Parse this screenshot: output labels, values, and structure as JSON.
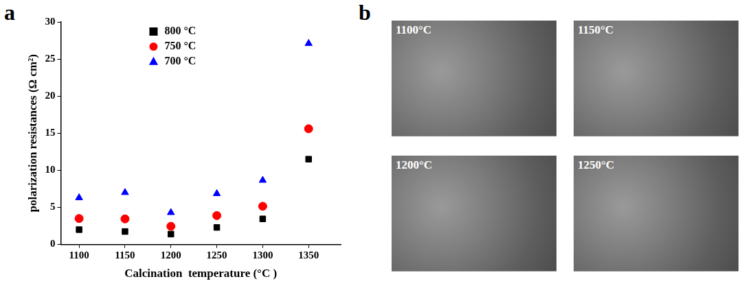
{
  "panel_letters": [
    "a",
    "b"
  ],
  "chart_data": {
    "type": "scatter",
    "x_label": "Calcination  temperature (°C )",
    "y_label": "polarization resistances (Ω cm²)",
    "x": [
      1100,
      1150,
      1200,
      1250,
      1300,
      1350
    ],
    "series": [
      {
        "name": "800 °C",
        "color": "#000000",
        "marker": "square",
        "values": [
          2.0,
          1.75,
          1.4,
          2.3,
          3.45,
          11.5
        ]
      },
      {
        "name": "750 °C",
        "color": "#ff0000",
        "marker": "circle",
        "values": [
          3.5,
          3.45,
          2.45,
          3.9,
          5.15,
          15.6
        ]
      },
      {
        "name": "700 °C",
        "color": "#0000ff",
        "marker": "triangle",
        "values": [
          6.3,
          7.0,
          4.3,
          6.85,
          8.65,
          27.1
        ]
      }
    ],
    "xlim": [
      1080,
      1385
    ],
    "xticks": [
      1100,
      1150,
      1200,
      1250,
      1300,
      1350
    ],
    "ylim": [
      0,
      30
    ],
    "yticks": [
      0,
      5,
      10,
      15,
      20,
      25,
      30
    ],
    "grid": false,
    "legend": "upper center"
  },
  "micrographs": [
    {
      "label": "1100°C"
    },
    {
      "label": "1150°C"
    },
    {
      "label": "1200°C"
    },
    {
      "label": "1250°C"
    }
  ]
}
